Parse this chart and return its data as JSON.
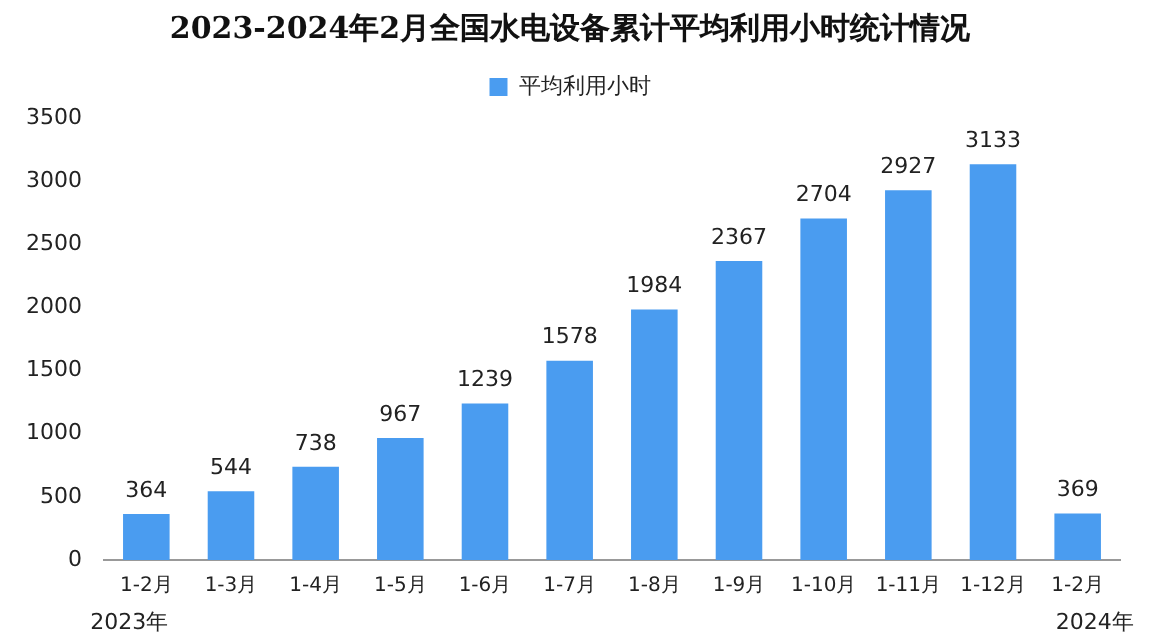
{
  "chart_data": {
    "type": "bar",
    "title": "2023-2024年2月全国水电设备累计平均利用小时统计情况",
    "categories": [
      "1-2月",
      "1-3月",
      "1-4月",
      "1-5月",
      "1-6月",
      "1-7月",
      "1-8月",
      "1-9月",
      "1-10月",
      "1-11月",
      "1-12月",
      "1-2月"
    ],
    "series": [
      {
        "name": "平均利用小时",
        "color": "#4a9cf0",
        "values": [
          364,
          544,
          738,
          967,
          1239,
          1578,
          1984,
          2367,
          2704,
          2927,
          3133,
          369
        ]
      }
    ],
    "ylim": [
      0,
      3500
    ],
    "yticks": [
      0,
      500,
      1000,
      1500,
      2000,
      2500,
      3000,
      3500
    ],
    "grid": false,
    "legend": "top",
    "data_labels": true,
    "annotations": [
      "2023年",
      "2024年"
    ]
  }
}
